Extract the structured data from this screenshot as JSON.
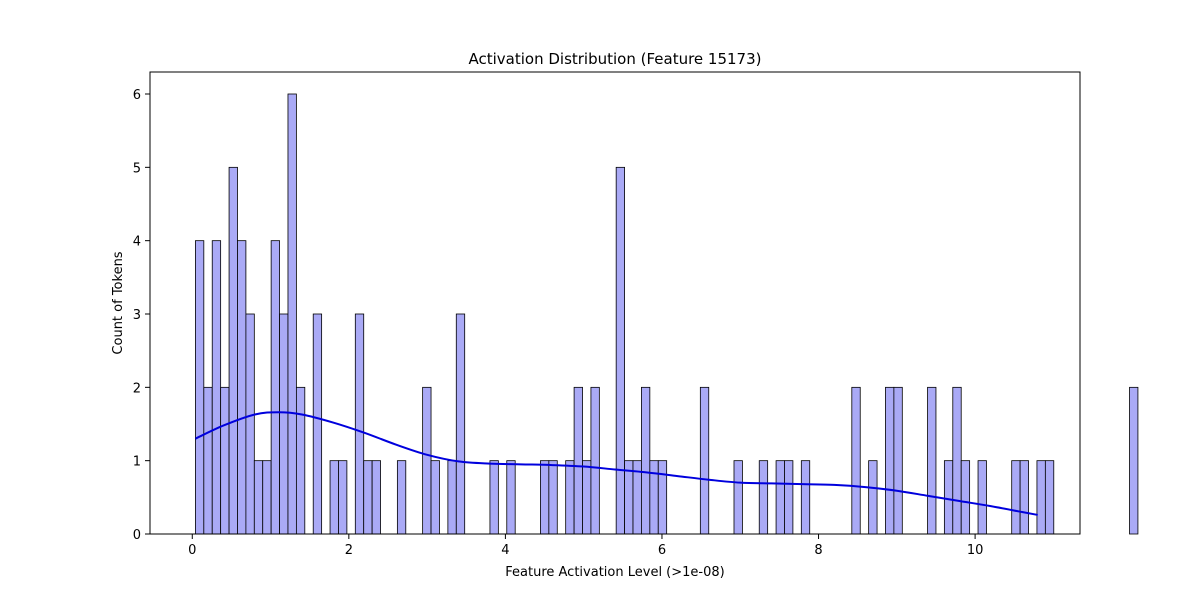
{
  "chart_data": {
    "type": "bar",
    "title": "Activation Distribution (Feature 15173)",
    "xlabel": "Feature Activation Level (>1e-08)",
    "ylabel": "Count of Tokens",
    "xlim": [
      -0.54,
      11.34
    ],
    "ylim": [
      0,
      6.3
    ],
    "xticks": [
      0,
      2,
      4,
      6,
      8,
      10
    ],
    "yticks": [
      0,
      1,
      2,
      3,
      4,
      5,
      6
    ],
    "grid": false,
    "bin_start": 0.04,
    "bin_width": 0.1075,
    "counts": [
      4,
      2,
      4,
      2,
      5,
      4,
      3,
      1,
      1,
      4,
      3,
      6,
      2,
      0,
      3,
      0,
      1,
      1,
      0,
      3,
      1,
      1,
      0,
      0,
      1,
      0,
      0,
      2,
      1,
      0,
      1,
      3,
      0,
      0,
      0,
      1,
      0,
      1,
      0,
      0,
      0,
      1,
      1,
      0,
      1,
      2,
      1,
      2,
      0,
      0,
      5,
      1,
      1,
      2,
      1,
      1,
      0,
      0,
      0,
      0,
      2,
      0,
      0,
      0,
      1,
      0,
      0,
      1,
      0,
      1,
      1,
      0,
      1,
      0,
      0,
      0,
      0,
      0,
      2,
      0,
      1,
      0,
      2,
      2,
      0,
      0,
      0,
      2,
      0,
      1,
      2,
      1,
      0,
      1,
      0,
      0,
      0,
      1,
      1,
      0,
      1,
      1,
      0,
      0,
      0,
      0,
      0,
      0,
      0,
      0,
      0,
      2
    ],
    "kde": {
      "x": [
        0.04,
        0.4,
        0.8,
        1.1,
        1.4,
        1.8,
        2.2,
        2.6,
        3.0,
        3.4,
        3.8,
        4.2,
        4.6,
        5.0,
        5.4,
        5.8,
        6.2,
        6.6,
        7.0,
        7.4,
        7.8,
        8.2,
        8.6,
        9.0,
        9.4,
        9.8,
        10.2,
        10.6,
        10.8
      ],
      "y": [
        1.3,
        1.48,
        1.63,
        1.66,
        1.63,
        1.52,
        1.38,
        1.22,
        1.08,
        0.99,
        0.96,
        0.95,
        0.94,
        0.92,
        0.88,
        0.84,
        0.79,
        0.74,
        0.7,
        0.69,
        0.68,
        0.67,
        0.64,
        0.59,
        0.52,
        0.45,
        0.38,
        0.3,
        0.26
      ]
    },
    "colors": {
      "bar_fill": "#aaaaf6",
      "bar_edge": "#000000",
      "kde_line": "#0000dd"
    }
  }
}
